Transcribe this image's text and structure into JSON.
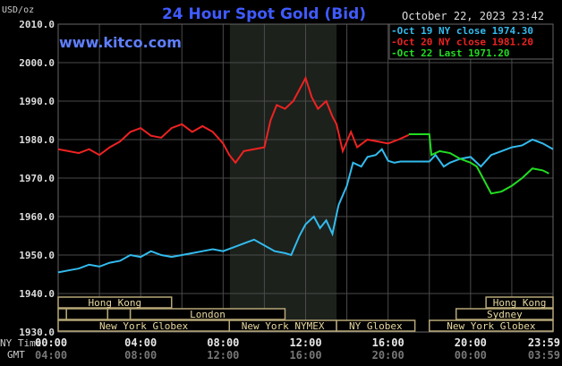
{
  "chart_data": {
    "type": "line",
    "title": "24 Hour Spot Gold (Bid)",
    "watermark": "www.kitco.com",
    "ylabel": "USD/oz",
    "timestamp": "October 22, 2023 23:42",
    "ylim": [
      1930,
      2010
    ],
    "yticks": [
      "2010.0",
      "2000.0",
      "1990.0",
      "1980.0",
      "1970.0",
      "1960.0",
      "1950.0",
      "1940.0",
      "1930.0"
    ],
    "xlim_hours": [
      0,
      24
    ],
    "x_row_labels": {
      "ny": "NY Time",
      "gmt": "GMT"
    },
    "xticks": [
      {
        "h": 0,
        "ny": "00:00",
        "gmt": "04:00"
      },
      {
        "h": 4,
        "ny": "04:00",
        "gmt": "08:00"
      },
      {
        "h": 8,
        "ny": "08:00",
        "gmt": "12:00"
      },
      {
        "h": 12,
        "ny": "12:00",
        "gmt": "16:00"
      },
      {
        "h": 16,
        "ny": "16:00",
        "gmt": "20:00"
      },
      {
        "h": 20,
        "ny": "20:00",
        "gmt": "00:00"
      },
      {
        "h": 24,
        "ny": "23:59",
        "gmt": "03:59"
      }
    ],
    "nymex_shade_hours": [
      8.33,
      13.5
    ],
    "legend": [
      {
        "label": "Oct 19 NY close 1974.30",
        "color": "#33bbee"
      },
      {
        "label": "Oct 20 NY close 1981.20",
        "color": "#ee2222"
      },
      {
        "label": "Oct 22 Last 1971.20",
        "color": "#22dd22"
      }
    ],
    "series": [
      {
        "name": "Oct 19",
        "color": "#33bbee",
        "points": [
          [
            0,
            1945.5
          ],
          [
            0.5,
            1946
          ],
          [
            1,
            1946.5
          ],
          [
            1.5,
            1947.5
          ],
          [
            2,
            1947
          ],
          [
            2.5,
            1948
          ],
          [
            3,
            1948.5
          ],
          [
            3.5,
            1950
          ],
          [
            4,
            1949.5
          ],
          [
            4.5,
            1951
          ],
          [
            5,
            1950
          ],
          [
            5.5,
            1949.5
          ],
          [
            6,
            1950
          ],
          [
            6.5,
            1950.5
          ],
          [
            7,
            1951
          ],
          [
            7.5,
            1951.5
          ],
          [
            8,
            1951
          ],
          [
            8.5,
            1952
          ],
          [
            9,
            1953
          ],
          [
            9.5,
            1954
          ],
          [
            10,
            1952.5
          ],
          [
            10.5,
            1951
          ],
          [
            11,
            1950.5
          ],
          [
            11.3,
            1950
          ],
          [
            11.7,
            1955
          ],
          [
            12,
            1958
          ],
          [
            12.4,
            1960
          ],
          [
            12.7,
            1957
          ],
          [
            13,
            1959
          ],
          [
            13.3,
            1955.5
          ],
          [
            13.6,
            1963
          ],
          [
            14,
            1968
          ],
          [
            14.3,
            1974
          ],
          [
            14.7,
            1973
          ],
          [
            15,
            1975.5
          ],
          [
            15.4,
            1976
          ],
          [
            15.7,
            1977.5
          ],
          [
            16,
            1974.5
          ],
          [
            16.3,
            1974
          ],
          [
            16.6,
            1974.3
          ],
          [
            18,
            1974.3
          ],
          [
            18.3,
            1976
          ],
          [
            18.7,
            1973
          ],
          [
            19,
            1974
          ],
          [
            19.5,
            1975
          ],
          [
            20,
            1975.5
          ],
          [
            20.5,
            1973
          ],
          [
            21,
            1976
          ],
          [
            21.5,
            1977
          ],
          [
            22,
            1978
          ],
          [
            22.5,
            1978.5
          ],
          [
            23,
            1980
          ],
          [
            23.5,
            1979
          ],
          [
            24,
            1977.5
          ]
        ]
      },
      {
        "name": "Oct 20",
        "color": "#ee2222",
        "points": [
          [
            0,
            1977.5
          ],
          [
            0.5,
            1977
          ],
          [
            1,
            1976.5
          ],
          [
            1.5,
            1977.5
          ],
          [
            2,
            1976
          ],
          [
            2.5,
            1978
          ],
          [
            3,
            1979.5
          ],
          [
            3.5,
            1982
          ],
          [
            4,
            1983
          ],
          [
            4.5,
            1981
          ],
          [
            5,
            1980.5
          ],
          [
            5.5,
            1983
          ],
          [
            6,
            1984
          ],
          [
            6.5,
            1982
          ],
          [
            7,
            1983.5
          ],
          [
            7.5,
            1982
          ],
          [
            8,
            1979
          ],
          [
            8.3,
            1976
          ],
          [
            8.6,
            1974
          ],
          [
            9,
            1977
          ],
          [
            9.5,
            1977.5
          ],
          [
            10,
            1978
          ],
          [
            10.3,
            1985
          ],
          [
            10.6,
            1989
          ],
          [
            11,
            1988
          ],
          [
            11.4,
            1990
          ],
          [
            11.7,
            1993
          ],
          [
            12,
            1996
          ],
          [
            12.3,
            1991
          ],
          [
            12.6,
            1988
          ],
          [
            13,
            1990
          ],
          [
            13.3,
            1986
          ],
          [
            13.5,
            1984
          ],
          [
            13.8,
            1977
          ],
          [
            14.2,
            1982
          ],
          [
            14.5,
            1978
          ],
          [
            15,
            1980
          ],
          [
            15.5,
            1979.5
          ],
          [
            16,
            1979
          ],
          [
            16.5,
            1980
          ],
          [
            17,
            1981.2
          ]
        ]
      },
      {
        "name": "Oct 22",
        "color": "#22dd22",
        "points": [
          [
            17,
            1981.4
          ],
          [
            18,
            1981.4
          ],
          [
            18.1,
            1976
          ],
          [
            18.5,
            1977
          ],
          [
            19,
            1976.5
          ],
          [
            19.5,
            1975
          ],
          [
            20,
            1974
          ],
          [
            20.3,
            1973
          ],
          [
            20.6,
            1970
          ],
          [
            21,
            1966
          ],
          [
            21.5,
            1966.5
          ],
          [
            22,
            1968
          ],
          [
            22.5,
            1970
          ],
          [
            23,
            1972.5
          ],
          [
            23.5,
            1972
          ],
          [
            23.8,
            1971.2
          ]
        ]
      }
    ],
    "sessions": [
      {
        "row": 0,
        "label": "Hong Kong",
        "start": 0,
        "end": 5.5
      },
      {
        "row": 0,
        "label": "Hong Kong",
        "start": 20.75,
        "end": 24
      },
      {
        "row": 1,
        "label": "",
        "start": 0,
        "end": 0.4
      },
      {
        "row": 1,
        "label": "",
        "start": 0.4,
        "end": 2.4
      },
      {
        "row": 1,
        "label": "",
        "start": 2.4,
        "end": 3.5
      },
      {
        "row": 1,
        "label": "London",
        "start": 3.5,
        "end": 11
      },
      {
        "row": 1,
        "label": "Sydney",
        "start": 19.3,
        "end": 24
      },
      {
        "row": 2,
        "label": "New York Globex",
        "start": 0,
        "end": 8.3
      },
      {
        "row": 2,
        "label": "New York NYMEX",
        "start": 8.3,
        "end": 13.5
      },
      {
        "row": 2,
        "label": "NY Globex",
        "start": 13.5,
        "end": 17.3
      },
      {
        "row": 2,
        "label": "New York Globex",
        "start": 18,
        "end": 24
      }
    ]
  }
}
